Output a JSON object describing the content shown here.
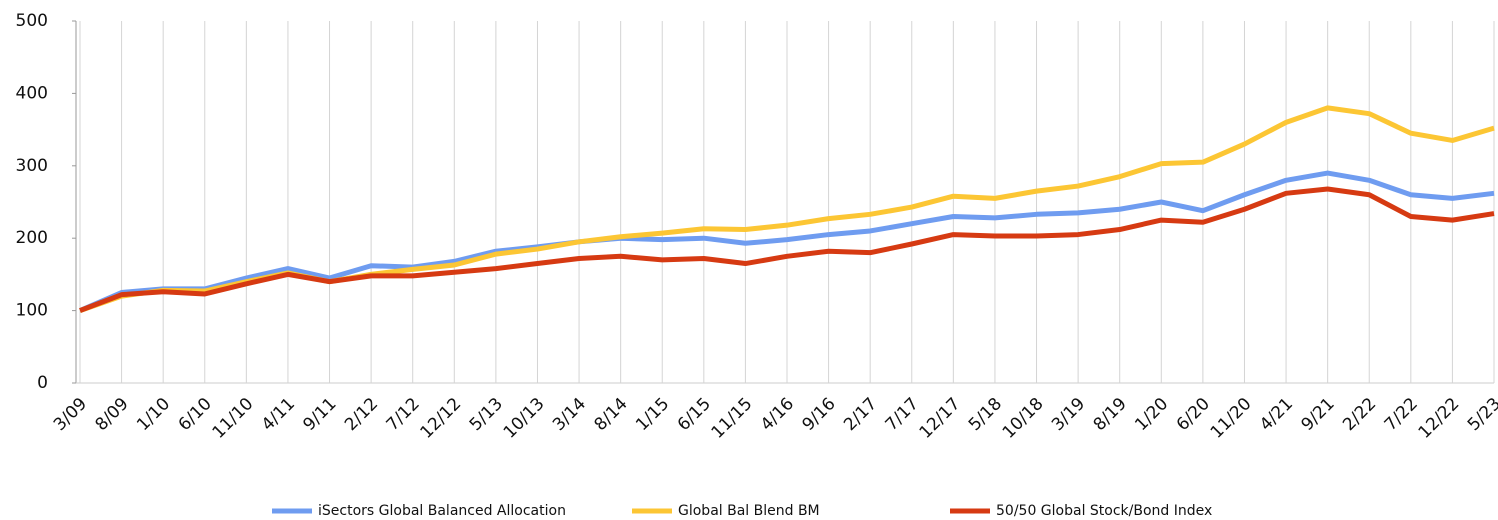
{
  "chart_data": {
    "type": "line",
    "categories": [
      "3/09",
      "8/09",
      "1/10",
      "6/10",
      "11/10",
      "4/11",
      "9/11",
      "2/12",
      "7/12",
      "12/12",
      "5/13",
      "10/13",
      "3/14",
      "8/14",
      "1/15",
      "6/15",
      "11/15",
      "4/16",
      "9/16",
      "2/17",
      "7/17",
      "12/17",
      "5/18",
      "10/18",
      "3/19",
      "8/19",
      "1/20",
      "6/20",
      "11/20",
      "4/21",
      "9/21",
      "2/22",
      "7/22",
      "12/22",
      "5/23"
    ],
    "series": [
      {
        "name": "iSectors Global Balanced Allocation",
        "color": "#6f9cf0",
        "values": [
          100,
          125,
          130,
          130,
          145,
          158,
          145,
          162,
          160,
          168,
          182,
          188,
          195,
          200,
          198,
          200,
          193,
          198,
          205,
          210,
          220,
          230,
          228,
          233,
          235,
          240,
          250,
          238,
          260,
          280,
          290,
          280,
          260,
          255,
          262
        ]
      },
      {
        "name": "Global Bal Blend BM",
        "color": "#fcc634",
        "values": [
          100,
          120,
          128,
          127,
          140,
          152,
          140,
          150,
          157,
          163,
          178,
          185,
          195,
          202,
          207,
          213,
          212,
          218,
          227,
          233,
          243,
          258,
          255,
          265,
          272,
          285,
          303,
          305,
          330,
          360,
          380,
          372,
          345,
          335,
          352
        ]
      },
      {
        "name": "50/50 Global Stock/Bond Index",
        "color": "#d63a12",
        "values": [
          100,
          122,
          126,
          123,
          137,
          150,
          140,
          148,
          148,
          153,
          158,
          165,
          172,
          175,
          170,
          172,
          165,
          175,
          182,
          180,
          192,
          205,
          203,
          203,
          205,
          212,
          225,
          222,
          240,
          262,
          268,
          260,
          230,
          225,
          234
        ]
      }
    ],
    "ylim": [
      0,
      500
    ],
    "yticks": [
      0,
      100,
      200,
      300,
      400,
      500
    ],
    "grid": true
  }
}
